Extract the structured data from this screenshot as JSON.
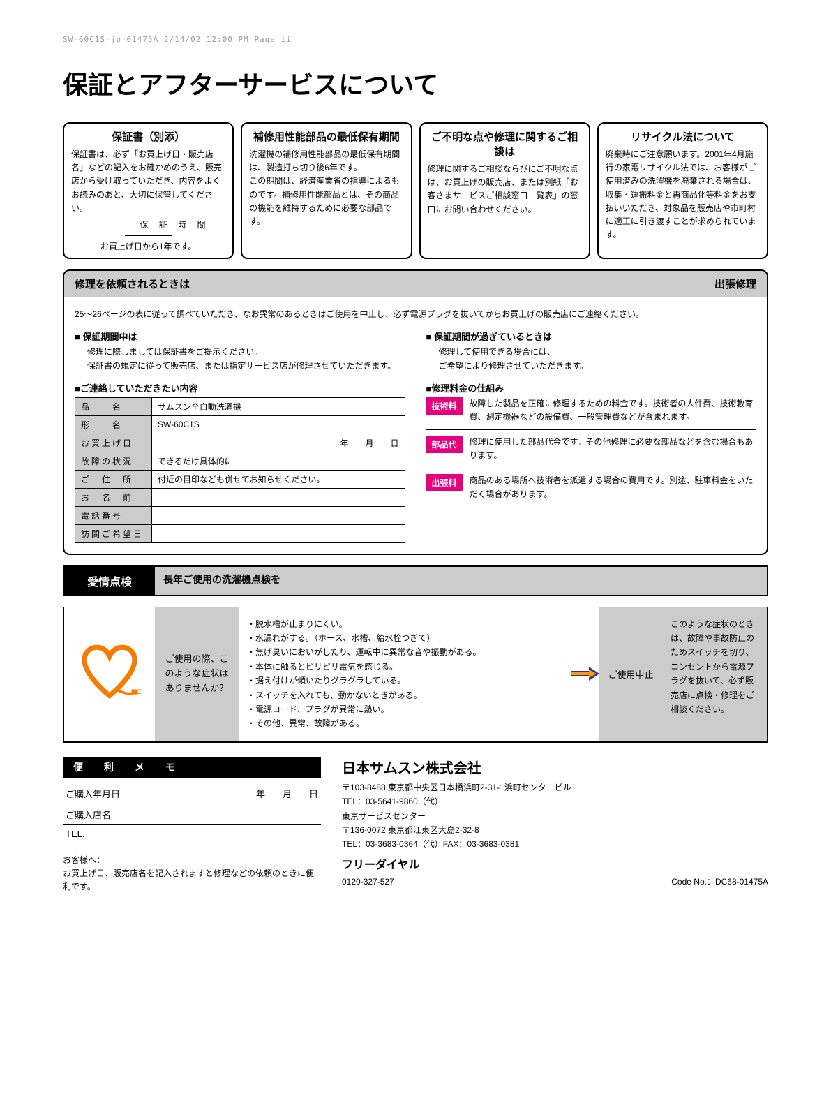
{
  "headerLine": "SW-60C1S-jp-01475A  2/14/02 12:00 PM  Page ii",
  "pageTitle": "保証とアフターサービスについて",
  "box1": {
    "title": "保証書（別添）",
    "body": "保証書は、必ず「お買上げ日・販売店名」などの記入をお確かめのうえ、販売店から受け取っていただき、内容をよくお読みのあと、大切に保管してください。",
    "periodLabel": "保 証 時 間",
    "periodText": "お買上げ日から1年です。"
  },
  "box2": {
    "title": "補修用性能部品の最低保有期間",
    "body": "洗濯機の補修用性能部品の最低保有期間は、製造打ち切り後6年です。\nこの期間は、経済産業省の指導によるものです。補修用性能部品とは、その商品の機能を維持するために必要な部品です。"
  },
  "box3": {
    "title": "ご不明な点や修理に関するご相談は",
    "body": "修理に関するご相談ならびにご不明な点は、お買上げの販売店、または別紙「お客さまサービスご相談窓口一覧表」の窓口にお問い合わせください。"
  },
  "box4": {
    "title": "リサイクル法について",
    "body": "廃棄時にご注意願います。2001年4月施行の家電リサイクル法では、お客様がご使用済みの洗濯機を廃棄される場合は、収集・運搬料金と再商品化等料金をお支払いいただき、対象品を販売店や市町村に適正に引き渡すことが求められています。"
  },
  "repair": {
    "headerLeft": "修理を依頼されるときは",
    "headerRight": "出張修理",
    "intro": "25〜26ページの表に従って調べていただき、なお異常のあるときはご使用を中止し、必ず電源プラグを抜いてからお買上げの販売店にご連絡ください。",
    "inPeriod": {
      "title": "■ 保証期間中は",
      "text": "修理に際しましては保証書をご提示ください。\n保証書の規定に従って販売店、または指定サービス店が修理させていただきます。"
    },
    "afterPeriod": {
      "title": "■ 保証期間が過ぎているときは",
      "text": "修理して使用できる場合には、\nご希望により修理させていただきます。"
    },
    "contactTitle": "■ご連絡していただきたい内容",
    "feeTitle": "■修理料金の仕組み",
    "table": {
      "rows": [
        {
          "label": "品　　名",
          "value": "サムスン全自動洗濯機"
        },
        {
          "label": "形　　名",
          "value": "SW-60C1S"
        },
        {
          "label": "お買上げ日",
          "value": "年　　月　　日"
        },
        {
          "label": "故障の状況",
          "value": "できるだけ具体的に"
        },
        {
          "label": "ご　住　所",
          "value": "付近の目印なども併せてお知らせください。"
        },
        {
          "label": "お　名　前",
          "value": ""
        },
        {
          "label": "電話番号",
          "value": ""
        },
        {
          "label": "訪問ご希望日",
          "value": ""
        }
      ]
    },
    "fees": [
      {
        "tag": "技術料",
        "desc": "故障した製品を正確に修理するための料金です。技術者の人件費、技術教育費、測定機器などの設備費、一般管理費などが含まれます。"
      },
      {
        "tag": "部品代",
        "desc": "修理に使用した部品代金です。その他修理に必要な部品などを含む場合もあります。"
      },
      {
        "tag": "出張料",
        "desc": "商品のある場所へ技術者を派遣する場合の費用です。別途、駐車料金をいただく場合があります。"
      }
    ]
  },
  "inspection": {
    "label": "愛情点検",
    "header": "長年ご使用の洗濯機点検を",
    "prompt": "ご使用の際、このような症状はありませんか？",
    "symptoms": [
      "・脱水槽が止まりにくい。",
      "・水漏れがする。（ホース、水槽、給水栓つぎて）",
      "・焦げ臭いにおいがしたり、運転中に異常な音や振動がある。",
      "・本体に触るとピリピリ電気を感じる。",
      "・据え付けが傾いたりグラグラしている。",
      "・スイッチを入れても、動かないときがある。",
      "・電源コード、プラグが異常に熱い。",
      "・その他、異常、故障がある。"
    ],
    "stop": "ご使用中止",
    "advice": "このような症状のときは、故障や事故防止のためスイッチを切り、コンセントから電源プラグを抜いて、必ず販売店に点検・修理をご相談ください。"
  },
  "memo": {
    "header": "便　利　メ　モ",
    "rows": [
      {
        "label": "ご購入年月日",
        "date": true
      },
      {
        "label": "ご購入店名",
        "date": false
      },
      {
        "label": "TEL.",
        "date": false
      }
    ],
    "dateY": "年",
    "dateM": "月",
    "dateD": "日"
  },
  "customer": {
    "label": "お客様へ：",
    "text": "お買上げ日、販売店名を記入されますと修理などの依頼のときに便利です。"
  },
  "company": {
    "name": "日本サムスン株式会社",
    "addr1": "〒103-8488 東京都中央区日本橋浜町2-31-1浜町センタービル",
    "tel1": "TEL：03-5641-9860（代）",
    "center": "東京サービスセンター",
    "addr2": "〒136-0072 東京都江東区大島2-32-8",
    "tel2": "TEL：03-3683-0364（代）FAX：03-3683-0381",
    "freeDialLabel": "フリーダイヤル",
    "freeDialNum": "0120-327-527",
    "codeNo": "Code No.：DC68-01475A"
  },
  "colors": {
    "magenta": "#e6007e",
    "orange": "#f57c00",
    "gray": "#cccccc",
    "arrowPurple": "#3f2b8f",
    "arrowOrange": "#f59e0b"
  }
}
